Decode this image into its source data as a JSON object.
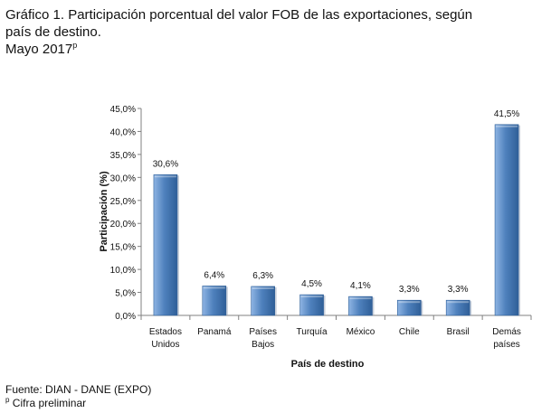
{
  "title": {
    "line1": "Gráfico 1. Participación porcentual del valor FOB de las exportaciones, según",
    "line2": "país de destino.",
    "line3_main": "Mayo 2017",
    "line3_sup": "p"
  },
  "footer": {
    "source": "Fuente: DIAN - DANE (EXPO)",
    "note_sup": "p",
    "note_text": " Cifra preliminar"
  },
  "chart_data": {
    "type": "bar",
    "categories": [
      [
        "Estados",
        "Unidos"
      ],
      [
        "Panamá"
      ],
      [
        "Países",
        "Bajos"
      ],
      [
        "Turquía"
      ],
      [
        "México"
      ],
      [
        "Chile"
      ],
      [
        "Brasil"
      ],
      [
        "Demás",
        "países"
      ]
    ],
    "values": [
      30.6,
      6.4,
      6.3,
      4.5,
      4.1,
      3.3,
      3.3,
      41.5
    ],
    "data_labels": [
      "30,6%",
      "6,4%",
      "6,3%",
      "4,5%",
      "4,1%",
      "3,3%",
      "3,3%",
      "41,5%"
    ],
    "ylim": [
      0,
      45
    ],
    "yticks": [
      0,
      5,
      10,
      15,
      20,
      25,
      30,
      35,
      40,
      45
    ],
    "ytick_labels": [
      "0,0%",
      "5,0%",
      "10,0%",
      "15,0%",
      "20,0%",
      "25,0%",
      "30,0%",
      "35,0%",
      "40,0%",
      "45,0%"
    ],
    "xlabel": "País de destino",
    "ylabel": "Participación  (%)",
    "colors": {
      "bar": "#4F81BD",
      "bar_light": "#8EB4E3",
      "bar_dark": "#2F5F98",
      "axis": "#808080"
    }
  }
}
